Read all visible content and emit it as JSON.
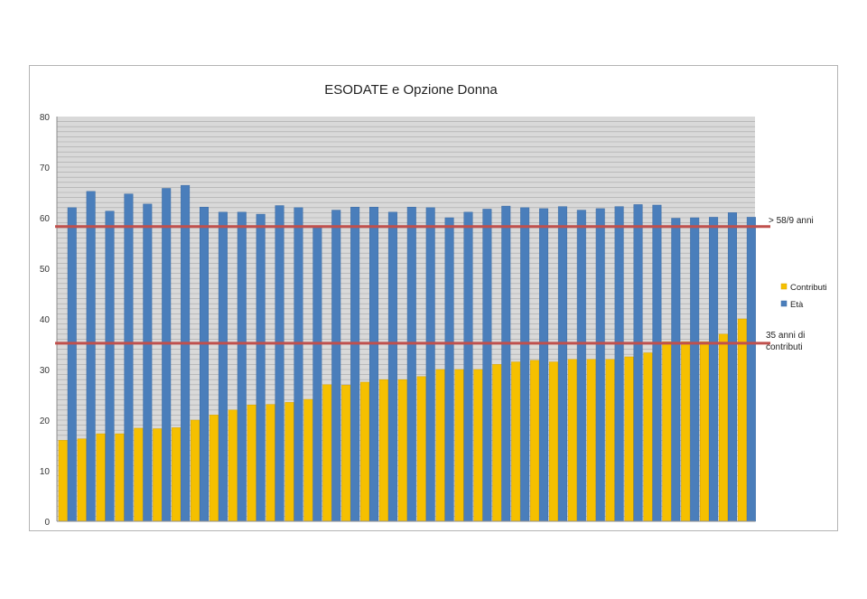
{
  "chart_data": {
    "type": "bar",
    "title": "ESODATE e Opzione Donna",
    "xlabel": "",
    "ylabel": "",
    "ylim": [
      0,
      80
    ],
    "yticks": [
      0,
      10,
      20,
      30,
      40,
      50,
      60,
      70,
      80
    ],
    "grid": true,
    "legend_position": "right",
    "series": [
      {
        "name": "Contributi",
        "color": "#f5c000",
        "values": [
          16,
          16.3,
          17.3,
          17.3,
          18.4,
          18.3,
          18.5,
          20,
          21,
          22,
          23,
          23.1,
          23.5,
          24.1,
          27,
          26.9,
          27.5,
          28,
          28,
          28.6,
          30,
          30,
          30,
          31,
          31.5,
          31.8,
          31.5,
          32,
          32,
          32,
          32.5,
          33.3,
          35.5,
          35.5,
          35.5,
          37,
          40
        ]
      },
      {
        "name": "Età",
        "color": "#4a7ebb",
        "values": [
          62,
          65.2,
          61.3,
          64.7,
          62.7,
          65.8,
          66.4,
          62.1,
          61.1,
          61.1,
          60.7,
          62.4,
          62,
          58.2,
          61.5,
          62.1,
          62.1,
          61.1,
          62.1,
          62,
          60,
          61.1,
          61.7,
          62.3,
          62,
          61.8,
          62.2,
          61.5,
          61.8,
          62.2,
          62.6,
          62.5,
          59.9,
          60,
          60.1,
          61,
          60.1
        ]
      }
    ],
    "reference_lines": [
      {
        "value": 58.25,
        "label": "> 58/9 anni",
        "color": "#c0504d"
      },
      {
        "value": 35.2,
        "label": "35 anni di contributi",
        "label_lines": [
          "35 anni di",
          "contributi"
        ],
        "color": "#c0504d"
      }
    ]
  }
}
